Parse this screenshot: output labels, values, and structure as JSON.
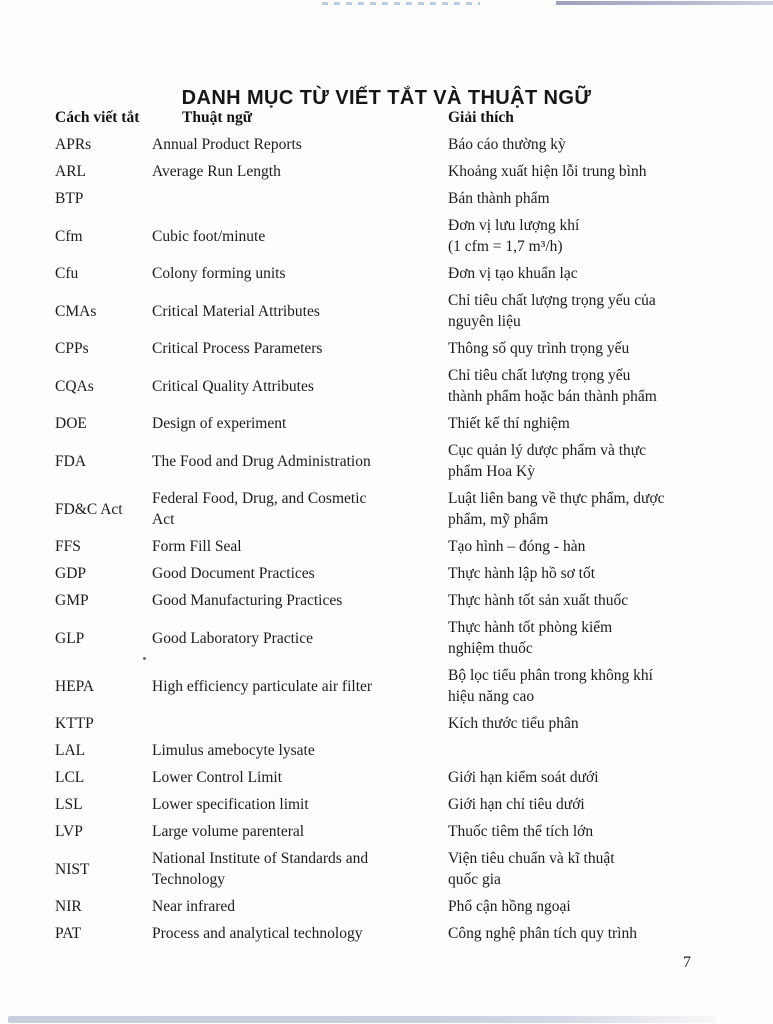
{
  "page": {
    "title": "DANH MỤC TỪ VIẾT TẮT VÀ THUẬT NGỮ",
    "page_number": "7"
  },
  "table": {
    "headers": {
      "abbr": "Cách viết tắt",
      "term": "Thuật ngữ",
      "explanation": "Giải thích"
    },
    "rows": [
      {
        "abbr": "APRs",
        "term": "Annual Product Reports",
        "explanation": "Báo cáo thường kỳ"
      },
      {
        "abbr": "ARL",
        "term": "Average Run Length",
        "explanation": "Khoảng xuất hiện lỗi trung bình"
      },
      {
        "abbr": "BTP",
        "term": "",
        "explanation": "Bán thành phẩm"
      },
      {
        "abbr": "Cfm",
        "term": "Cubic foot/minute",
        "explanation": "Đơn vị lưu lượng khí\n(1 cfm = 1,7 m³/h)"
      },
      {
        "abbr": "Cfu",
        "term": "Colony forming units",
        "explanation": "Đơn vị tạo khuẩn lạc"
      },
      {
        "abbr": "CMAs",
        "term": "Critical Material Attributes",
        "explanation": "Chỉ tiêu chất lượng trọng yếu của\nnguyên liệu"
      },
      {
        "abbr": "CPPs",
        "term": "Critical Process Parameters",
        "explanation": "Thông số quy trình trọng yếu"
      },
      {
        "abbr": "CQAs",
        "term": "Critical Quality Attributes",
        "explanation": "Chỉ tiêu chất lượng trọng yếu\nthành phẩm hoặc bán thành phẩm"
      },
      {
        "abbr": "DOE",
        "term": "Design of experiment",
        "explanation": "Thiết kế thí nghiệm"
      },
      {
        "abbr": "FDA",
        "term": "The Food and Drug Administration",
        "explanation": "Cục quản lý dược phẩm và thực\nphẩm Hoa Kỳ"
      },
      {
        "abbr": "FD&C Act",
        "term": "Federal Food, Drug, and Cosmetic\nAct",
        "explanation": "Luật liên bang về thực phẩm, dược\nphẩm, mỹ phẩm"
      },
      {
        "abbr": "FFS",
        "term": "Form Fill Seal",
        "explanation": "Tạo hình – đóng - hàn"
      },
      {
        "abbr": "GDP",
        "term": "Good Document Practices",
        "explanation": "Thực hành lập hồ sơ tốt"
      },
      {
        "abbr": "GMP",
        "term": "Good Manufacturing Practices",
        "explanation": "Thực hành tốt sản xuất thuốc"
      },
      {
        "abbr": "GLP",
        "term": "Good Laboratory Practice",
        "explanation": "Thực hành tốt phòng kiểm\nnghiệm thuốc"
      },
      {
        "abbr": "HEPA",
        "term": "High efficiency particulate air filter",
        "explanation": "Bộ lọc tiểu phân trong không khí\nhiệu năng cao"
      },
      {
        "abbr": "KTTP",
        "term": "",
        "explanation": "Kích thước tiểu phân"
      },
      {
        "abbr": "LAL",
        "term": "Limulus amebocyte lysate",
        "explanation": ""
      },
      {
        "abbr": "LCL",
        "term": "Lower Control Limit",
        "explanation": "Giới hạn kiểm soát dưới"
      },
      {
        "abbr": "LSL",
        "term": "Lower specification limit",
        "explanation": "Giới hạn chỉ tiêu dưới"
      },
      {
        "abbr": "LVP",
        "term": "Large volume parenteral",
        "explanation": "Thuốc tiêm thể tích lớn"
      },
      {
        "abbr": "NIST",
        "term": "National Institute of Standards and\nTechnology",
        "explanation": "Viện tiêu chuẩn và kĩ thuật\nquốc gia"
      },
      {
        "abbr": "NIR",
        "term": "Near infrared",
        "explanation": "Phổ cận hồng ngoại"
      },
      {
        "abbr": "PAT",
        "term": "Process and analytical technology",
        "explanation": "Công nghệ phân tích quy trình"
      }
    ]
  }
}
